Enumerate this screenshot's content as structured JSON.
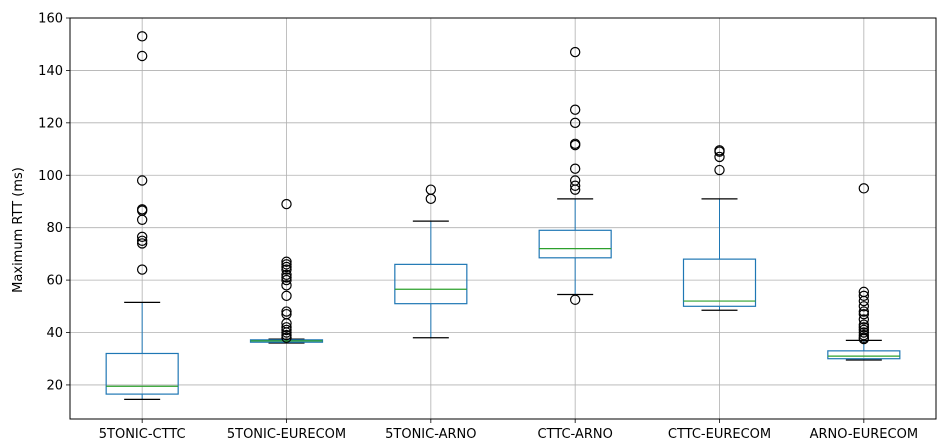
{
  "chart_data": {
    "type": "box",
    "title": "",
    "xlabel": "",
    "ylabel": "Maximum RTT (ms)",
    "ylim": [
      7,
      160
    ],
    "yticks": [
      20,
      40,
      60,
      80,
      100,
      120,
      140,
      160
    ],
    "grid": true,
    "colors": {
      "box": "#1f77b4",
      "median": "#2ca02c",
      "whisker_cap": "#000000",
      "outlier": "#000000",
      "grid": "#b0b0b0"
    },
    "categories": [
      "5TONIC-CTTC",
      "5TONIC-EURECOM",
      "5TONIC-ARNO",
      "CTTC-ARNO",
      "CTTC-EURECOM",
      "ARNO-EURECOM"
    ],
    "boxes": [
      {
        "category": "5TONIC-CTTC",
        "whisker_low": 14.5,
        "q1": 16.5,
        "median": 19.5,
        "q3": 32,
        "whisker_high": 51.5,
        "outliers": [
          64,
          74,
          75,
          76.5,
          83,
          86.5,
          87,
          98,
          145.5,
          153
        ]
      },
      {
        "category": "5TONIC-EURECOM",
        "whisker_low": 36,
        "q1": 36.3,
        "median": 36.8,
        "q3": 37.2,
        "whisker_high": 37.5,
        "outliers": [
          38,
          39,
          40,
          41,
          42,
          43.5,
          47,
          48,
          54,
          58,
          60,
          61,
          62,
          64,
          65,
          66,
          67,
          89
        ]
      },
      {
        "category": "5TONIC-ARNO",
        "whisker_low": 38,
        "q1": 51,
        "median": 56.5,
        "q3": 66,
        "whisker_high": 82.5,
        "outliers": [
          91,
          94.5
        ]
      },
      {
        "category": "CTTC-ARNO",
        "whisker_low": 54.5,
        "q1": 68.5,
        "median": 72,
        "q3": 79,
        "whisker_high": 91,
        "outliers": [
          52.5,
          94.5,
          96,
          98,
          102.5,
          111.5,
          112,
          120,
          125,
          147
        ]
      },
      {
        "category": "CTTC-EURECOM",
        "whisker_low": 48.5,
        "q1": 50,
        "median": 52,
        "q3": 68,
        "whisker_high": 91,
        "outliers": [
          102,
          107,
          109,
          109.5
        ]
      },
      {
        "category": "ARNO-EURECOM",
        "whisker_low": 29.5,
        "q1": 30,
        "median": 31,
        "q3": 33,
        "whisker_high": 37,
        "outliers": [
          37.5,
          38,
          39,
          40,
          41,
          42,
          43,
          45,
          47,
          48,
          50,
          52,
          54,
          55.5,
          95
        ]
      }
    ]
  }
}
